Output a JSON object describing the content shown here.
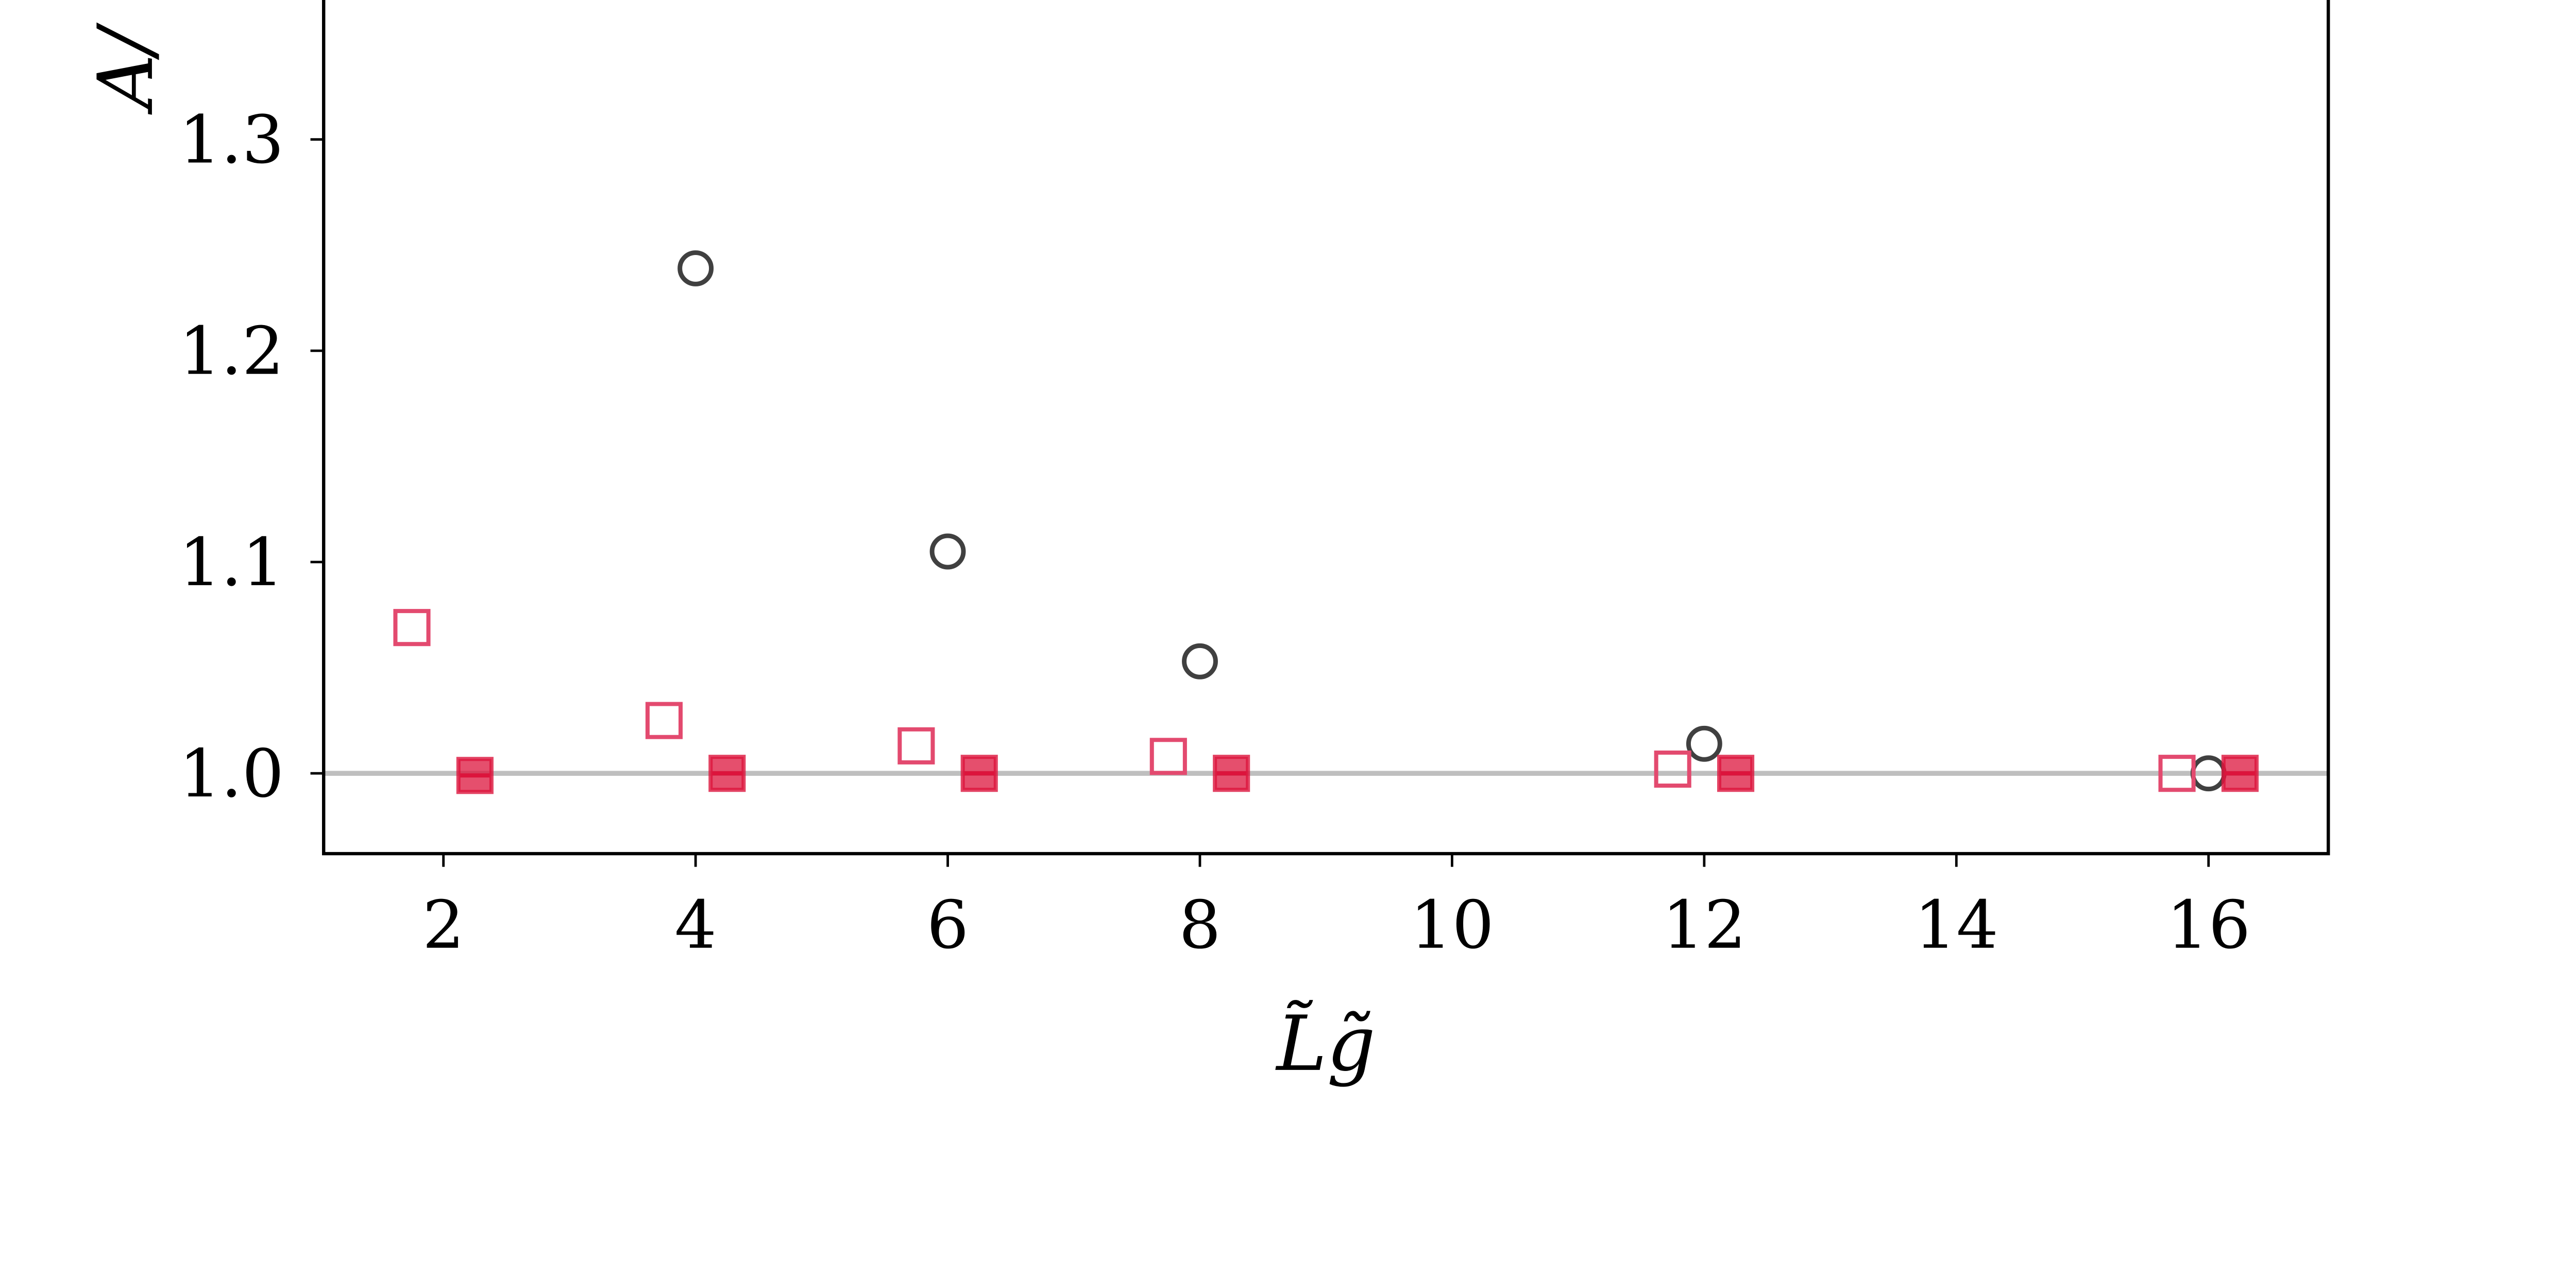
{
  "chart_data": {
    "type": "scatter",
    "title": "",
    "xlabel": "L̃g̃",
    "ylabel": "A/",
    "xlim": [
      1.05,
      16.95
    ],
    "ylim": [
      0.962,
      1.366
    ],
    "xticks": [
      2,
      4,
      6,
      8,
      10,
      12,
      14,
      16
    ],
    "xtick_labels": [
      "2",
      "4",
      "6",
      "8",
      "10",
      "12",
      "14",
      "16"
    ],
    "yticks": [
      1.0,
      1.1,
      1.2,
      1.3
    ],
    "ytick_labels": [
      "1.0",
      "1.1",
      "1.2",
      "1.3"
    ],
    "grid": false,
    "reference_line": {
      "y": 1.0,
      "color": "#bfbfbf"
    },
    "series": [
      {
        "marker": "open-circle",
        "color": "#404040",
        "x": [
          4,
          6,
          8,
          12,
          16
        ],
        "y": [
          1.239,
          1.105,
          1.053,
          1.014,
          1.0
        ]
      },
      {
        "marker": "open-square",
        "color": "#e34a6f",
        "x": [
          1.75,
          3.75,
          5.75,
          7.75,
          11.75,
          15.75
        ],
        "y": [
          1.069,
          1.025,
          1.013,
          1.008,
          1.002,
          1.0
        ]
      },
      {
        "marker": "filled-square",
        "color": "#dc143c",
        "x": [
          2.25,
          4.25,
          6.25,
          8.25,
          12.25,
          16.25
        ],
        "y": [
          0.999,
          1.0,
          1.0,
          1.0,
          1.0,
          1.0
        ]
      }
    ]
  }
}
